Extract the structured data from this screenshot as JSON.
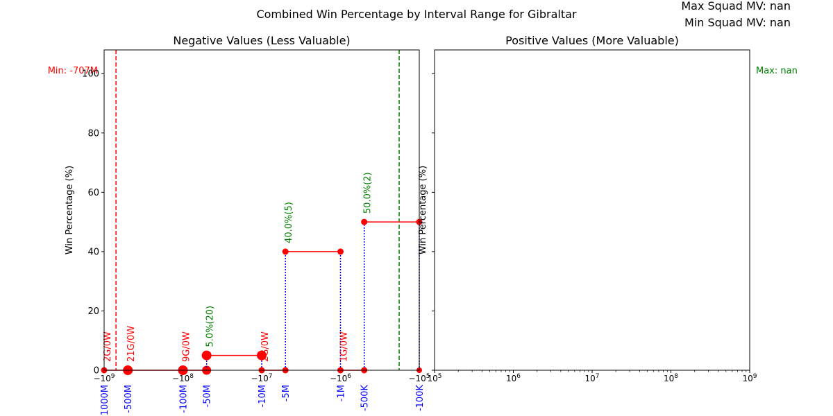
{
  "figure": {
    "title": "Combined Win Percentage by Interval Range for Gibraltar",
    "max_squad_mv": "Max Squad MV: nan",
    "min_squad_mv": "Min Squad MV: nan",
    "background": "#ffffff"
  },
  "chart_data": [
    {
      "type": "line",
      "title": "Negative Values (Less Valuable)",
      "ylabel": "Win Percentage (%)",
      "xscale": "symlog-negative",
      "ylim": [
        0,
        108
      ],
      "y_ticks": [
        0,
        20,
        40,
        60,
        80,
        100
      ],
      "y_tick_labels": [
        "0",
        "20",
        "40",
        "60",
        "80",
        "100"
      ],
      "x_ticks": [
        {
          "value": -1000000000,
          "label": "−10^9"
        },
        {
          "value": -100000000,
          "label": "−10^8"
        },
        {
          "value": -10000000,
          "label": "−10^7"
        },
        {
          "value": -1000000,
          "label": "−10^6"
        },
        {
          "value": -100000,
          "label": "−10^5"
        }
      ],
      "interval_labels": [
        {
          "value": -1000000000,
          "label": "-1000M"
        },
        {
          "value": -500000000,
          "label": "-500M"
        },
        {
          "value": -100000000,
          "label": "-100M"
        },
        {
          "value": -50000000,
          "label": "-50M"
        },
        {
          "value": -10000000,
          "label": "-10M"
        },
        {
          "value": -5000000,
          "label": "-5M"
        },
        {
          "value": -1000000,
          "label": "-1M"
        },
        {
          "value": -500000,
          "label": "-500K"
        },
        {
          "value": -100000,
          "label": "-100K"
        }
      ],
      "segments": [
        {
          "x_start": -1000000000,
          "x_end": -500000000,
          "win_pct": 0,
          "games": 2,
          "wins": 0,
          "annotation": "2G/0W",
          "annotation_color": "#ff0000"
        },
        {
          "x_start": -500000000,
          "x_end": -100000000,
          "win_pct": 0,
          "games": 21,
          "wins": 0,
          "annotation": "21G/0W",
          "annotation_color": "#ff0000"
        },
        {
          "x_start": -100000000,
          "x_end": -50000000,
          "win_pct": 0,
          "games": 9,
          "wins": 0,
          "annotation": "9G/0W",
          "annotation_color": "#ff0000"
        },
        {
          "x_start": -50000000,
          "x_end": -10000000,
          "win_pct": 5.0,
          "games": 20,
          "wins": 1,
          "annotation": "5.0%(20)",
          "annotation_color": "#008000"
        },
        {
          "x_start": -10000000,
          "x_end": -5000000,
          "win_pct": 0,
          "games": 2,
          "wins": 0,
          "annotation": "2G/0W",
          "annotation_color": "#ff0000"
        },
        {
          "x_start": -5000000,
          "x_end": -1000000,
          "win_pct": 40.0,
          "games": 5,
          "wins": 2,
          "annotation": "40.0%(5)",
          "annotation_color": "#008000"
        },
        {
          "x_start": -1000000,
          "x_end": -500000,
          "win_pct": 0,
          "games": 1,
          "wins": 0,
          "annotation": "1G/0W",
          "annotation_color": "#ff0000"
        },
        {
          "x_start": -500000,
          "x_end": -100000,
          "win_pct": 50.0,
          "games": 2,
          "wins": 1,
          "annotation": "50.0%(2)",
          "annotation_color": "#008000"
        }
      ],
      "min_line": {
        "value": -707000000,
        "label": "Min: -707M",
        "color": "#ff0000"
      },
      "max_line": {
        "value": -180000,
        "color": "#008000"
      },
      "colors": {
        "line": "#ff0000",
        "marker": "#ff0000",
        "connector": "#0000ff",
        "interval_label": "#0000ff"
      }
    },
    {
      "type": "line",
      "title": "Positive Values (More Valuable)",
      "ylabel": "Win Percentage (%)",
      "xscale": "log",
      "xlim": [
        100000,
        1000000000
      ],
      "x_ticks": [
        {
          "value": 100000,
          "label": "10^5"
        },
        {
          "value": 1000000,
          "label": "10^6"
        },
        {
          "value": 10000000,
          "label": "10^7"
        },
        {
          "value": 100000000,
          "label": "10^8"
        },
        {
          "value": 1000000000,
          "label": "10^9"
        }
      ],
      "max_label": {
        "label": "Max: nan",
        "color": "#008000"
      },
      "segments": []
    }
  ]
}
